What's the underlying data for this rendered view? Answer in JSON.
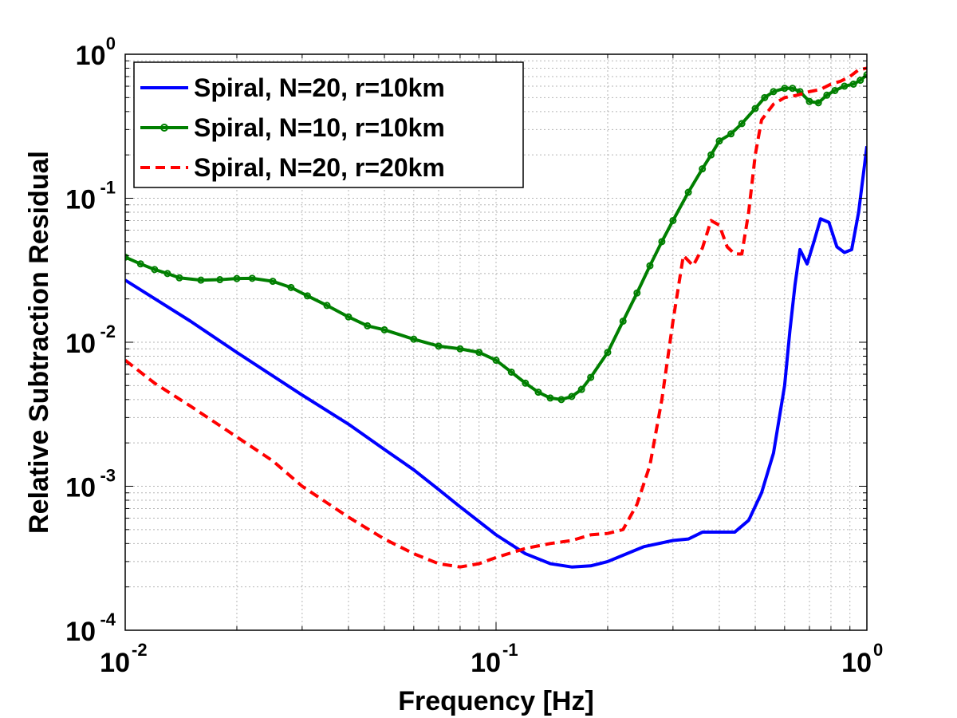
{
  "chart_data": {
    "type": "line",
    "xscale": "log",
    "yscale": "log",
    "xlim": [
      0.01,
      1
    ],
    "ylim": [
      0.0001,
      1
    ],
    "xlabel": "Frequency [Hz]",
    "ylabel": "Relative Subtraction Residual",
    "grid": true,
    "legend_position": "top-left",
    "x_ticks": [
      {
        "value": 0.01,
        "base": "10",
        "exp": "-2"
      },
      {
        "value": 0.1,
        "base": "10",
        "exp": "-1"
      },
      {
        "value": 1,
        "base": "10",
        "exp": "0"
      }
    ],
    "y_ticks": [
      {
        "value": 0.0001,
        "base": "10",
        "exp": "-4"
      },
      {
        "value": 0.001,
        "base": "10",
        "exp": "-3"
      },
      {
        "value": 0.01,
        "base": "10",
        "exp": "-2"
      },
      {
        "value": 0.1,
        "base": "10",
        "exp": "-1"
      },
      {
        "value": 1,
        "base": "10",
        "exp": "0"
      }
    ],
    "series": [
      {
        "name": "Spiral, N=20, r=10km",
        "color": "#0000ff",
        "style": "solid",
        "marker": "none",
        "points": [
          [
            0.01,
            0.027
          ],
          [
            0.015,
            0.014
          ],
          [
            0.02,
            0.0085
          ],
          [
            0.03,
            0.0043
          ],
          [
            0.04,
            0.0027
          ],
          [
            0.05,
            0.0018
          ],
          [
            0.06,
            0.0013
          ],
          [
            0.07,
            0.00095
          ],
          [
            0.08,
            0.00072
          ],
          [
            0.1,
            0.00046
          ],
          [
            0.12,
            0.00034
          ],
          [
            0.14,
            0.00029
          ],
          [
            0.16,
            0.000275
          ],
          [
            0.18,
            0.00028
          ],
          [
            0.2,
            0.0003
          ],
          [
            0.25,
            0.00038
          ],
          [
            0.3,
            0.00042
          ],
          [
            0.33,
            0.00043
          ],
          [
            0.36,
            0.00048
          ],
          [
            0.4,
            0.00048
          ],
          [
            0.44,
            0.00048
          ],
          [
            0.48,
            0.00058
          ],
          [
            0.52,
            0.0009
          ],
          [
            0.56,
            0.0017
          ],
          [
            0.6,
            0.005
          ],
          [
            0.62,
            0.012
          ],
          [
            0.64,
            0.025
          ],
          [
            0.66,
            0.044
          ],
          [
            0.69,
            0.035
          ],
          [
            0.72,
            0.05
          ],
          [
            0.75,
            0.072
          ],
          [
            0.79,
            0.068
          ],
          [
            0.83,
            0.046
          ],
          [
            0.87,
            0.042
          ],
          [
            0.91,
            0.044
          ],
          [
            0.95,
            0.08
          ],
          [
            1.0,
            0.23
          ]
        ]
      },
      {
        "name": "Spiral, N=10, r=10km",
        "color": "#007f00",
        "style": "solid",
        "marker": "circle",
        "points": [
          [
            0.01,
            0.039
          ],
          [
            0.011,
            0.035
          ],
          [
            0.012,
            0.032
          ],
          [
            0.013,
            0.03
          ],
          [
            0.014,
            0.028
          ],
          [
            0.016,
            0.027
          ],
          [
            0.018,
            0.0272
          ],
          [
            0.02,
            0.0277
          ],
          [
            0.022,
            0.0278
          ],
          [
            0.025,
            0.0265
          ],
          [
            0.028,
            0.024
          ],
          [
            0.031,
            0.021
          ],
          [
            0.035,
            0.018
          ],
          [
            0.04,
            0.015
          ],
          [
            0.045,
            0.013
          ],
          [
            0.05,
            0.0122
          ],
          [
            0.06,
            0.0105
          ],
          [
            0.07,
            0.0094
          ],
          [
            0.08,
            0.009
          ],
          [
            0.09,
            0.0085
          ],
          [
            0.1,
            0.0075
          ],
          [
            0.11,
            0.0062
          ],
          [
            0.12,
            0.0052
          ],
          [
            0.13,
            0.0045
          ],
          [
            0.14,
            0.0041
          ],
          [
            0.15,
            0.004
          ],
          [
            0.16,
            0.0042
          ],
          [
            0.17,
            0.0047
          ],
          [
            0.18,
            0.0057
          ],
          [
            0.2,
            0.0085
          ],
          [
            0.22,
            0.014
          ],
          [
            0.24,
            0.022
          ],
          [
            0.26,
            0.034
          ],
          [
            0.28,
            0.05
          ],
          [
            0.3,
            0.07
          ],
          [
            0.33,
            0.11
          ],
          [
            0.36,
            0.16
          ],
          [
            0.38,
            0.2
          ],
          [
            0.4,
            0.25
          ],
          [
            0.43,
            0.28
          ],
          [
            0.46,
            0.33
          ],
          [
            0.5,
            0.42
          ],
          [
            0.53,
            0.5
          ],
          [
            0.56,
            0.55
          ],
          [
            0.6,
            0.58
          ],
          [
            0.63,
            0.58
          ],
          [
            0.66,
            0.55
          ],
          [
            0.7,
            0.47
          ],
          [
            0.74,
            0.46
          ],
          [
            0.78,
            0.52
          ],
          [
            0.82,
            0.56
          ],
          [
            0.87,
            0.6
          ],
          [
            0.92,
            0.62
          ],
          [
            0.96,
            0.66
          ],
          [
            1.0,
            0.72
          ]
        ]
      },
      {
        "name": "Spiral, N=20, r=20km",
        "color": "#ff0000",
        "style": "dashed",
        "marker": "none",
        "points": [
          [
            0.01,
            0.0075
          ],
          [
            0.012,
            0.0052
          ],
          [
            0.015,
            0.0036
          ],
          [
            0.02,
            0.0022
          ],
          [
            0.025,
            0.0015
          ],
          [
            0.03,
            0.001
          ],
          [
            0.04,
            0.00061
          ],
          [
            0.05,
            0.00043
          ],
          [
            0.06,
            0.00034
          ],
          [
            0.07,
            0.00029
          ],
          [
            0.08,
            0.000275
          ],
          [
            0.09,
            0.00029
          ],
          [
            0.1,
            0.00032
          ],
          [
            0.12,
            0.00037
          ],
          [
            0.14,
            0.0004
          ],
          [
            0.16,
            0.00042
          ],
          [
            0.18,
            0.00046
          ],
          [
            0.2,
            0.00047
          ],
          [
            0.22,
            0.0005
          ],
          [
            0.24,
            0.00075
          ],
          [
            0.26,
            0.0014
          ],
          [
            0.28,
            0.004
          ],
          [
            0.3,
            0.014
          ],
          [
            0.32,
            0.04
          ],
          [
            0.34,
            0.034
          ],
          [
            0.36,
            0.045
          ],
          [
            0.38,
            0.07
          ],
          [
            0.4,
            0.065
          ],
          [
            0.42,
            0.046
          ],
          [
            0.44,
            0.041
          ],
          [
            0.46,
            0.041
          ],
          [
            0.48,
            0.08
          ],
          [
            0.5,
            0.2
          ],
          [
            0.52,
            0.35
          ],
          [
            0.56,
            0.45
          ],
          [
            0.6,
            0.5
          ],
          [
            0.65,
            0.52
          ],
          [
            0.7,
            0.55
          ],
          [
            0.75,
            0.57
          ],
          [
            0.8,
            0.62
          ],
          [
            0.85,
            0.65
          ],
          [
            0.9,
            0.7
          ],
          [
            0.95,
            0.78
          ],
          [
            1.0,
            0.8
          ]
        ]
      }
    ]
  }
}
